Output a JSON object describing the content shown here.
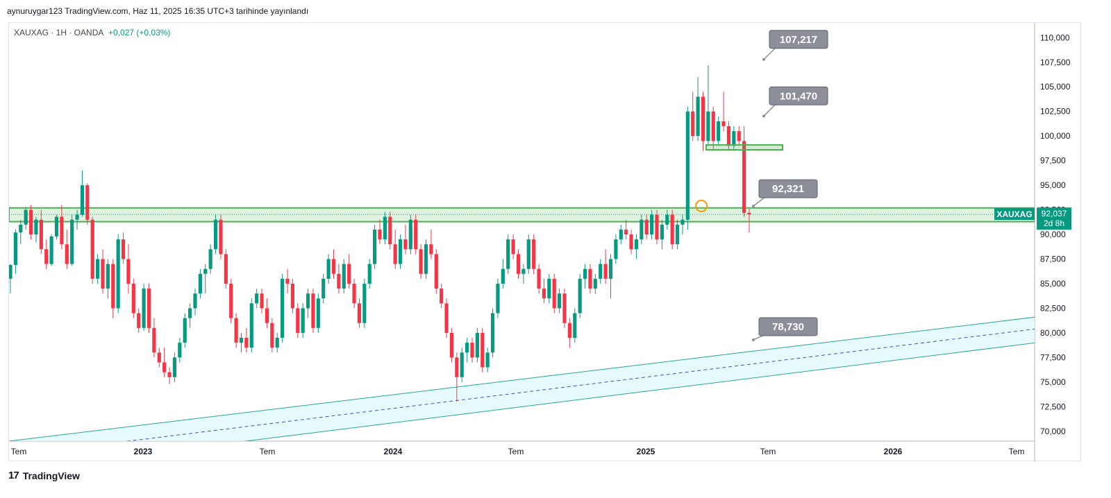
{
  "header": {
    "text": "aynuruygar123 TradingView.com, Haz 11, 2025 16:35 UTC+3 tarihinde yayınlandı"
  },
  "symbol": {
    "name": "XAUXAG · 1H · OANDA",
    "change": "+0,027 (+0,03%)"
  },
  "footer": {
    "brand": "TradingView",
    "logo": "17"
  },
  "colors": {
    "up": "#089981",
    "down": "#f23645",
    "zone": "#4caf50",
    "channel": "#26a69a",
    "channel_fill": "#e0f7fa",
    "callout": "#8c8f99",
    "price_tag": "#089981"
  },
  "chart_data": {
    "type": "candlestick",
    "symbol": "XAUXAG",
    "ylim": [
      69000,
      111500
    ],
    "y_ticks": [
      "110,000",
      "107,500",
      "105,000",
      "102,500",
      "100,000",
      "97,500",
      "95,000",
      "92,500",
      "90,000",
      "87,500",
      "85,000",
      "82,500",
      "80,000",
      "77,500",
      "75,000",
      "72,500",
      "70,000"
    ],
    "x_ticks": [
      "Tem",
      "2023",
      "Tem",
      "2024",
      "Tem",
      "2025",
      "Tem",
      "2026",
      "Tem"
    ],
    "last_price": {
      "label": "XAUXAG",
      "value": "92,037",
      "countdown": "2d 8h",
      "value_num": 92037
    },
    "annotations": [
      {
        "label": "107,217",
        "value": 107217
      },
      {
        "label": "101,470",
        "value": 101470
      },
      {
        "label": "92,321",
        "value": 92321
      },
      {
        "label": "78,730",
        "value": 78730
      }
    ],
    "support_zone": [
      91300,
      92700
    ],
    "small_zone": [
      98600,
      99100
    ],
    "channel": {
      "upper": [
        69000,
        82200
      ],
      "mid": [
        67500,
        81000
      ],
      "lower": [
        66000,
        79600
      ]
    },
    "candles": [
      [
        85500,
        87000,
        84000,
        86900
      ],
      [
        86900,
        90500,
        86000,
        90200
      ],
      [
        90200,
        91500,
        89000,
        91000
      ],
      [
        91000,
        92800,
        90500,
        92500
      ],
      [
        92500,
        93000,
        89500,
        90000
      ],
      [
        90000,
        91800,
        89200,
        91500
      ],
      [
        91500,
        92500,
        88000,
        88500
      ],
      [
        88500,
        89500,
        86500,
        87000
      ],
      [
        87000,
        90000,
        86800,
        89800
      ],
      [
        89800,
        92000,
        89500,
        91800
      ],
      [
        91800,
        93000,
        88500,
        89000
      ],
      [
        89000,
        90500,
        86500,
        87000
      ],
      [
        87000,
        92000,
        86800,
        91500
      ],
      [
        91500,
        92500,
        90500,
        92000
      ],
      [
        92000,
        96500,
        91800,
        95000
      ],
      [
        95000,
        95200,
        91000,
        91500
      ],
      [
        91500,
        91800,
        85000,
        85500
      ],
      [
        85500,
        88000,
        85000,
        87500
      ],
      [
        87500,
        88500,
        84000,
        84500
      ],
      [
        84500,
        87500,
        83500,
        87000
      ],
      [
        87000,
        87500,
        81500,
        82500
      ],
      [
        82500,
        90000,
        82000,
        89500
      ],
      [
        89500,
        90200,
        87000,
        87500
      ],
      [
        87500,
        89000,
        84000,
        85000
      ],
      [
        85000,
        85500,
        81500,
        82000
      ],
      [
        82000,
        82500,
        80000,
        80500
      ],
      [
        80500,
        85000,
        80200,
        84500
      ],
      [
        84500,
        85000,
        80000,
        80500
      ],
      [
        80500,
        81500,
        77500,
        78000
      ],
      [
        78000,
        78500,
        76500,
        77000
      ],
      [
        77000,
        78500,
        75500,
        76000
      ],
      [
        76000,
        76500,
        74800,
        75500
      ],
      [
        75500,
        78000,
        75000,
        77500
      ],
      [
        77500,
        79500,
        77000,
        79000
      ],
      [
        79000,
        82000,
        78500,
        81500
      ],
      [
        81500,
        83000,
        80500,
        82500
      ],
      [
        82500,
        84500,
        81800,
        84000
      ],
      [
        84000,
        86500,
        83500,
        86000
      ],
      [
        86000,
        87000,
        84000,
        86500
      ],
      [
        86500,
        89000,
        86000,
        88500
      ],
      [
        88500,
        92000,
        88000,
        91500
      ],
      [
        91500,
        92000,
        87500,
        88000
      ],
      [
        88000,
        88500,
        84500,
        85000
      ],
      [
        85000,
        85500,
        81000,
        81500
      ],
      [
        81500,
        82000,
        78500,
        79000
      ],
      [
        79000,
        80000,
        78000,
        79500
      ],
      [
        79500,
        80500,
        78000,
        78500
      ],
      [
        78500,
        83500,
        78000,
        83000
      ],
      [
        83000,
        84500,
        82500,
        84000
      ],
      [
        84000,
        84500,
        82000,
        82500
      ],
      [
        82500,
        83500,
        80500,
        81000
      ],
      [
        81000,
        81500,
        78000,
        78500
      ],
      [
        78500,
        80000,
        78000,
        79500
      ],
      [
        79500,
        86000,
        79000,
        85500
      ],
      [
        85500,
        86500,
        84000,
        85000
      ],
      [
        85000,
        85500,
        82000,
        82500
      ],
      [
        82500,
        83000,
        79500,
        80000
      ],
      [
        80000,
        83000,
        79500,
        82500
      ],
      [
        82500,
        84500,
        81500,
        84000
      ],
      [
        84000,
        84500,
        80000,
        80500
      ],
      [
        80500,
        84000,
        80000,
        83500
      ],
      [
        83500,
        86000,
        83000,
        85500
      ],
      [
        85500,
        88000,
        85000,
        87500
      ],
      [
        87500,
        88500,
        85500,
        86000
      ],
      [
        86000,
        87000,
        84000,
        84500
      ],
      [
        84500,
        87500,
        84000,
        87000
      ],
      [
        87000,
        88000,
        84500,
        85000
      ],
      [
        85000,
        85500,
        82500,
        83000
      ],
      [
        83000,
        83500,
        80500,
        81000
      ],
      [
        81000,
        85500,
        80500,
        85000
      ],
      [
        85000,
        87500,
        84500,
        87000
      ],
      [
        87000,
        91000,
        86500,
        90500
      ],
      [
        90500,
        91500,
        89000,
        89500
      ],
      [
        89500,
        92300,
        89000,
        91800
      ],
      [
        91800,
        92300,
        88500,
        89000
      ],
      [
        89000,
        90500,
        86500,
        87000
      ],
      [
        87000,
        90000,
        86500,
        89500
      ],
      [
        89500,
        91000,
        88000,
        88500
      ],
      [
        88500,
        92000,
        88000,
        91500
      ],
      [
        91500,
        92000,
        88000,
        88500
      ],
      [
        88500,
        89000,
        85500,
        86000
      ],
      [
        86000,
        89500,
        85500,
        89000
      ],
      [
        89000,
        90500,
        87500,
        88000
      ],
      [
        88000,
        88500,
        84000,
        84500
      ],
      [
        84500,
        85000,
        82500,
        83000
      ],
      [
        83000,
        83500,
        79500,
        80000
      ],
      [
        80000,
        80500,
        77000,
        77500
      ],
      [
        77500,
        78000,
        73000,
        75500
      ],
      [
        75500,
        78500,
        75000,
        78000
      ],
      [
        78000,
        79500,
        77000,
        79000
      ],
      [
        79000,
        79500,
        77000,
        77500
      ],
      [
        77500,
        80500,
        77000,
        80000
      ],
      [
        80000,
        80500,
        76000,
        76500
      ],
      [
        76500,
        78500,
        76000,
        78000
      ],
      [
        78000,
        82500,
        77500,
        82000
      ],
      [
        82000,
        85500,
        81500,
        85000
      ],
      [
        85000,
        87500,
        84500,
        86500
      ],
      [
        86500,
        90000,
        86000,
        89500
      ],
      [
        89500,
        90000,
        87500,
        88000
      ],
      [
        88000,
        88500,
        85500,
        86000
      ],
      [
        86000,
        87000,
        85000,
        86500
      ],
      [
        86500,
        90000,
        86000,
        89500
      ],
      [
        89500,
        90000,
        86000,
        86500
      ],
      [
        86500,
        87000,
        84000,
        84500
      ],
      [
        84500,
        85500,
        83000,
        83500
      ],
      [
        83500,
        86000,
        83000,
        85500
      ],
      [
        85500,
        86000,
        82000,
        82500
      ],
      [
        82500,
        84500,
        82000,
        84000
      ],
      [
        84000,
        84500,
        80500,
        81000
      ],
      [
        81000,
        81500,
        78500,
        79500
      ],
      [
        79500,
        82500,
        79000,
        82000
      ],
      [
        82000,
        86000,
        81500,
        85500
      ],
      [
        85500,
        87000,
        84500,
        86500
      ],
      [
        86500,
        87000,
        84000,
        84500
      ],
      [
        84500,
        86000,
        84000,
        85500
      ],
      [
        85500,
        87500,
        85000,
        87000
      ],
      [
        87000,
        88500,
        85000,
        85500
      ],
      [
        85500,
        88000,
        83500,
        87500
      ],
      [
        87500,
        90000,
        87000,
        89500
      ],
      [
        89500,
        91000,
        89000,
        90500
      ],
      [
        90500,
        91500,
        89500,
        90000
      ],
      [
        90000,
        90500,
        88000,
        88500
      ],
      [
        88500,
        90000,
        87500,
        89500
      ],
      [
        89500,
        92000,
        89000,
        91500
      ],
      [
        91500,
        92000,
        89500,
        90000
      ],
      [
        90000,
        92500,
        89500,
        92000
      ],
      [
        92000,
        92500,
        89000,
        89500
      ],
      [
        89500,
        91500,
        88500,
        91000
      ],
      [
        91000,
        92500,
        90500,
        92000
      ],
      [
        92000,
        92500,
        88500,
        89000
      ],
      [
        89000,
        91500,
        88500,
        91000
      ],
      [
        91000,
        92000,
        90000,
        91500
      ],
      [
        91500,
        103000,
        90500,
        102500
      ],
      [
        102500,
        104500,
        99500,
        100000
      ],
      [
        100000,
        106000,
        99500,
        104000
      ],
      [
        104000,
        104500,
        98500,
        99500
      ],
      [
        99500,
        107200,
        99000,
        102500
      ],
      [
        102500,
        103000,
        98500,
        99500
      ],
      [
        99500,
        102000,
        99000,
        101500
      ],
      [
        101500,
        104500,
        100500,
        101000
      ],
      [
        101000,
        101500,
        98500,
        99000
      ],
      [
        99000,
        101000,
        98500,
        100500
      ],
      [
        100500,
        101000,
        99000,
        99500
      ],
      [
        99500,
        101000,
        91800,
        92200
      ],
      [
        92200,
        92600,
        90200,
        92037
      ]
    ]
  }
}
